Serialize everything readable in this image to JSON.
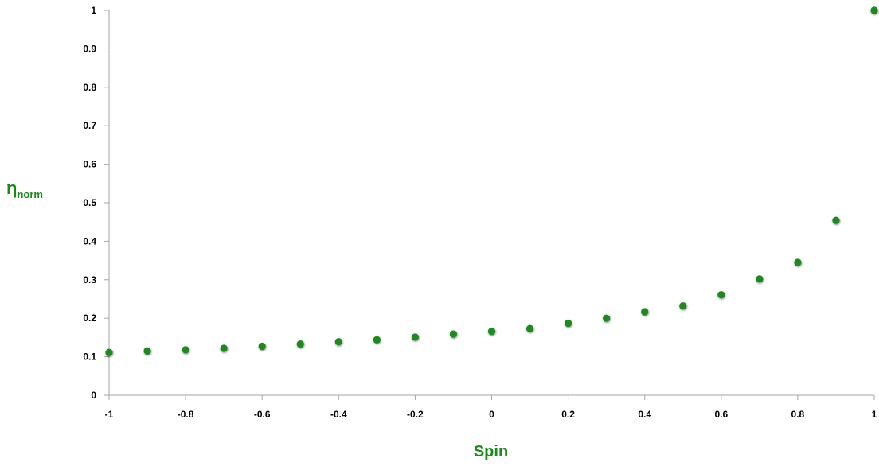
{
  "chart_data": {
    "type": "scatter",
    "title": "",
    "xlabel": "Spin",
    "ylabel": {
      "main": "η",
      "subscript": "norm"
    },
    "xlim": [
      -1,
      1
    ],
    "ylim": [
      0,
      1
    ],
    "x_ticks": [
      "-1",
      "-0.8",
      "-0.6",
      "-0.4",
      "-0.2",
      "0",
      "0.2",
      "0.4",
      "0.6",
      "0.8",
      "1"
    ],
    "y_ticks": [
      "0",
      "0.1",
      "0.2",
      "0.3",
      "0.4",
      "0.5",
      "0.6",
      "0.7",
      "0.8",
      "0.9",
      "1"
    ],
    "grid": false,
    "legend": "none",
    "marker_color": "#1a8a1a",
    "label_color": "#1a8a1a",
    "series": [
      {
        "x": [
          -1,
          -0.9,
          -0.8,
          -0.7,
          -0.6,
          -0.5,
          -0.4,
          -0.3,
          -0.2,
          -0.1,
          0,
          0.1,
          0.2,
          0.3,
          0.4,
          0.5,
          0.6,
          0.7,
          0.8,
          0.9,
          1
        ],
        "y": [
          0.111,
          0.115,
          0.118,
          0.122,
          0.127,
          0.133,
          0.139,
          0.144,
          0.151,
          0.159,
          0.166,
          0.173,
          0.187,
          0.2,
          0.217,
          0.232,
          0.261,
          0.302,
          0.345,
          0.454,
          1.0
        ]
      }
    ]
  }
}
